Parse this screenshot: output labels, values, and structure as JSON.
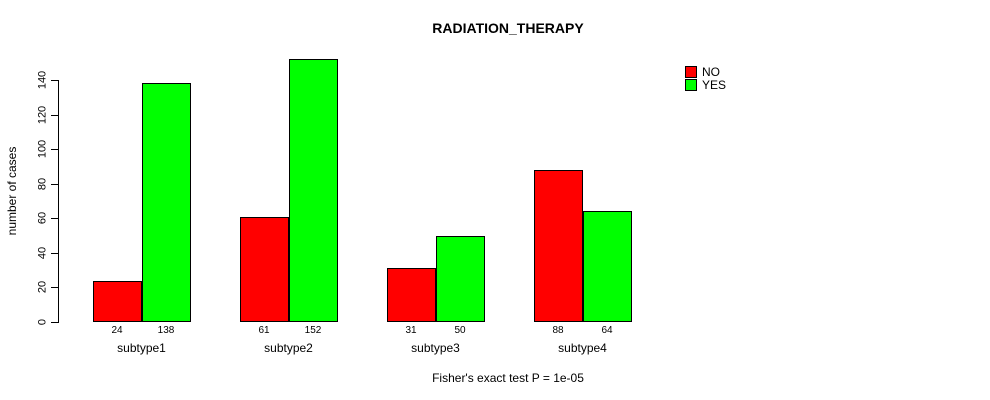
{
  "title": "RADIATION_THERAPY",
  "y_axis_title": "number of cases",
  "annotation": "Fisher's exact test P = 1e-05",
  "colors": {
    "no": "#FF0000",
    "yes": "#00FF00",
    "axis": "#000000",
    "background": "#FFFFFF",
    "text": "#000000"
  },
  "legend": {
    "position": "top-right",
    "items": [
      {
        "label": "NO",
        "color": "#FF0000"
      },
      {
        "label": "YES",
        "color": "#00FF00"
      }
    ]
  },
  "chart_data": {
    "type": "bar",
    "title": "RADIATION_THERAPY",
    "categories": [
      "subtype1",
      "subtype2",
      "subtype3",
      "subtype4"
    ],
    "series": [
      {
        "name": "NO",
        "color": "#FF0000",
        "values": [
          24,
          61,
          31,
          88
        ]
      },
      {
        "name": "YES",
        "color": "#00FF00",
        "values": [
          138,
          152,
          50,
          64
        ]
      }
    ],
    "bar_value_labels": [
      [
        "24",
        "138"
      ],
      [
        "61",
        "152"
      ],
      [
        "31",
        "50"
      ],
      [
        "88",
        "64"
      ]
    ],
    "xlabel": "",
    "ylabel": "number of cases",
    "ylim": [
      0,
      140
    ],
    "yticks": [
      0,
      20,
      40,
      60,
      80,
      100,
      120,
      140
    ],
    "grid": false,
    "legend_position": "top-right",
    "annotation": "Fisher's exact test P = 1e-05"
  }
}
